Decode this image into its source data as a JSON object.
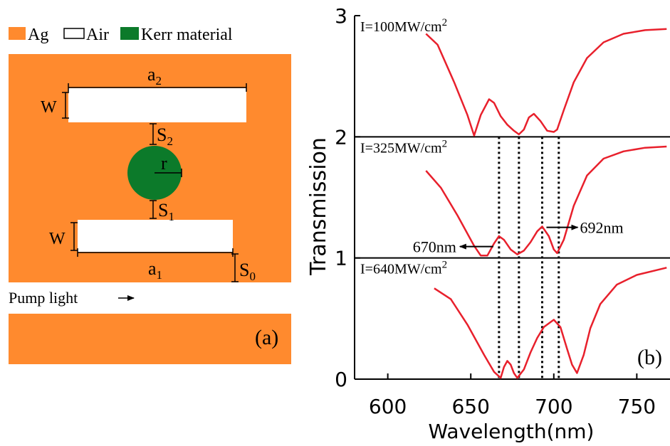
{
  "colors": {
    "silver": "#ff8a2e",
    "kerr": "#0c7a2a",
    "curve": "#e8202c",
    "ink": "#000000"
  },
  "panel_a": {
    "legend": {
      "ag": "Ag",
      "air": "Air",
      "kerr": "Kerr material"
    },
    "labels": {
      "a2": "a",
      "a2_sub": "2",
      "a1": "a",
      "a1_sub": "1",
      "w_top": "W",
      "w_bottom": "W",
      "s2": "S",
      "s2_sub": "2",
      "s1": "S",
      "s1_sub": "1",
      "s0": "S",
      "s0_sub": "0",
      "r": "r"
    },
    "pump_text": "Pump light",
    "panel_label": "(a)"
  },
  "chart_data": {
    "type": "line",
    "xlabel": "Wavelength(nm)",
    "ylabel": "Transmission",
    "xlim": [
      580,
      770
    ],
    "ylim": [
      0,
      3
    ],
    "x_ticks": [
      "600",
      "650",
      "700",
      "750"
    ],
    "y_ticks": [
      "0",
      "1",
      "2",
      "3"
    ],
    "panel_label": "(b)",
    "series": [
      {
        "name": "I=100MW/cm",
        "name_sup": "2",
        "offset": 2,
        "x": [
          623,
          630,
          640,
          648,
          652,
          656,
          661,
          664,
          668,
          672,
          676,
          679,
          682,
          685,
          688,
          692,
          696,
          700,
          702,
          706,
          712,
          720,
          730,
          742,
          755,
          768
        ],
        "y": [
          0.85,
          0.76,
          0.45,
          0.18,
          0.01,
          0.18,
          0.31,
          0.28,
          0.17,
          0.1,
          0.05,
          0.02,
          0.06,
          0.16,
          0.19,
          0.13,
          0.05,
          0.04,
          0.06,
          0.22,
          0.45,
          0.65,
          0.78,
          0.85,
          0.88,
          0.89
        ]
      },
      {
        "name": "I=325MW/cm",
        "name_sup": "2",
        "offset": 1,
        "x": [
          623,
          632,
          642,
          652,
          656,
          660,
          664,
          667,
          670,
          674,
          678,
          682,
          686,
          690,
          693,
          697,
          700,
          702,
          706,
          712,
          720,
          730,
          742,
          755,
          768
        ],
        "y": [
          0.72,
          0.58,
          0.35,
          0.1,
          0.02,
          0.02,
          0.12,
          0.18,
          0.15,
          0.07,
          0.03,
          0.06,
          0.13,
          0.22,
          0.26,
          0.18,
          0.07,
          0.04,
          0.15,
          0.43,
          0.68,
          0.82,
          0.88,
          0.91,
          0.92
        ]
      },
      {
        "name": "I=640MW/cm",
        "name_sup": "2",
        "offset": 0,
        "x": [
          628,
          638,
          648,
          658,
          664,
          668,
          670,
          672,
          674,
          676,
          678,
          682,
          686,
          690,
          694,
          700,
          704,
          708,
          711,
          714,
          718,
          722,
          728,
          738,
          750,
          768
        ],
        "y": [
          0.75,
          0.66,
          0.45,
          0.2,
          0.06,
          0.01,
          0.1,
          0.15,
          0.12,
          0.05,
          0.01,
          0.08,
          0.22,
          0.34,
          0.43,
          0.49,
          0.43,
          0.25,
          0.12,
          0.05,
          0.2,
          0.42,
          0.62,
          0.78,
          0.86,
          0.92
        ]
      }
    ],
    "dotted_lines": [
      667,
      679,
      693,
      703
    ],
    "annotations": [
      {
        "text": "670nm",
        "direction": "left",
        "anchor_x": 667,
        "anchor_y": 1.2
      },
      {
        "text": "692nm",
        "direction": "right",
        "anchor_x": 693,
        "anchor_y": 1.27
      }
    ]
  }
}
